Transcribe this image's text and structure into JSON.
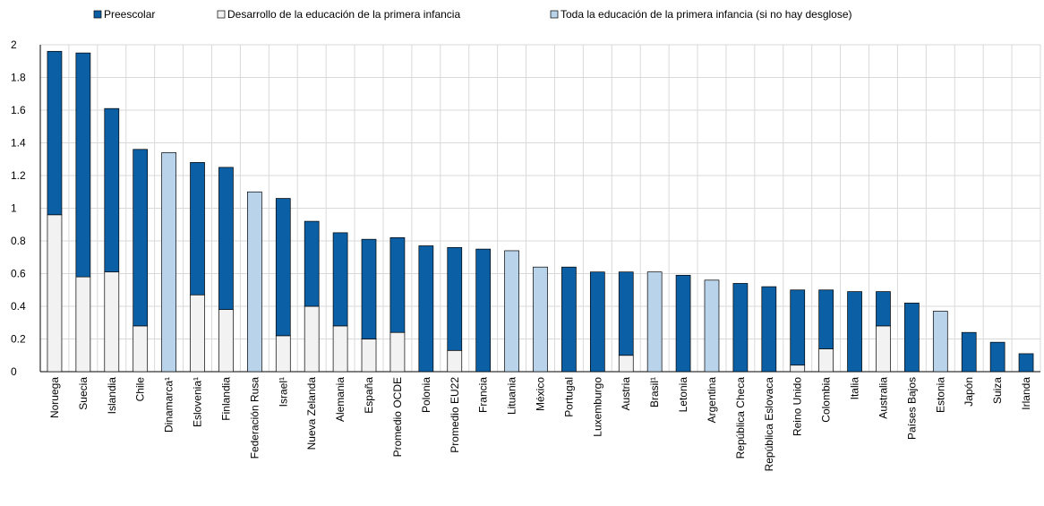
{
  "chart_data": {
    "type": "stacked_bar",
    "categories": [
      "Noruega",
      "Suecia",
      "Islandia",
      "Chile",
      "Dinamarca¹",
      "Eslovenia¹",
      "Finlandia",
      "Federación Rusa",
      "Israel¹",
      "Nueva Zelanda",
      "Alemania",
      "España",
      "Promedio OCDE",
      "Polonia",
      "Promedio EU22",
      "Francia",
      "Lituania",
      "México",
      "Portugal",
      "Luxemburgo",
      "Austria",
      "Brasil¹",
      "Letonia",
      "Argentina",
      "República Checa",
      "República Eslovaca",
      "Reino Unido",
      "Colombia",
      "Italia",
      "Australia",
      "Países Bajos",
      "Estonia",
      "Japón",
      "Suiza",
      "Irlanda"
    ],
    "series": [
      {
        "name": "Preescolar",
        "color": "#0b5fa5",
        "values": [
          1.0,
          1.37,
          1.0,
          1.08,
          null,
          0.81,
          0.87,
          null,
          0.84,
          0.52,
          0.57,
          0.61,
          0.58,
          0.77,
          0.63,
          0.75,
          null,
          null,
          0.64,
          0.61,
          0.51,
          null,
          0.59,
          null,
          0.54,
          0.52,
          0.46,
          0.36,
          0.49,
          0.21,
          0.42,
          null,
          0.24,
          0.18,
          0.11
        ]
      },
      {
        "name": "Desarrollo de la educación de la primera infancia",
        "color": "#f2f2f2",
        "values": [
          0.96,
          0.58,
          0.61,
          0.28,
          null,
          0.47,
          0.38,
          null,
          0.22,
          0.4,
          0.28,
          0.2,
          0.24,
          null,
          0.13,
          null,
          null,
          null,
          null,
          null,
          0.1,
          null,
          null,
          null,
          null,
          null,
          0.04,
          0.14,
          null,
          0.28,
          null,
          null,
          null,
          null,
          null
        ]
      },
      {
        "name": "Toda la educación de la primera infancia (si no hay desglose)",
        "color": "#b9d3ea",
        "values": [
          null,
          null,
          null,
          null,
          1.34,
          null,
          null,
          1.1,
          null,
          null,
          null,
          null,
          null,
          null,
          null,
          null,
          0.74,
          0.64,
          null,
          null,
          null,
          0.61,
          null,
          0.56,
          null,
          null,
          null,
          null,
          null,
          null,
          null,
          0.37,
          null,
          null,
          null
        ]
      }
    ],
    "ylim": [
      0,
      2
    ],
    "yticks": [
      0,
      0.2,
      0.4,
      0.6,
      0.8,
      1,
      1.2,
      1.4,
      1.6,
      1.8,
      2
    ],
    "grid": true,
    "legend": "top"
  }
}
